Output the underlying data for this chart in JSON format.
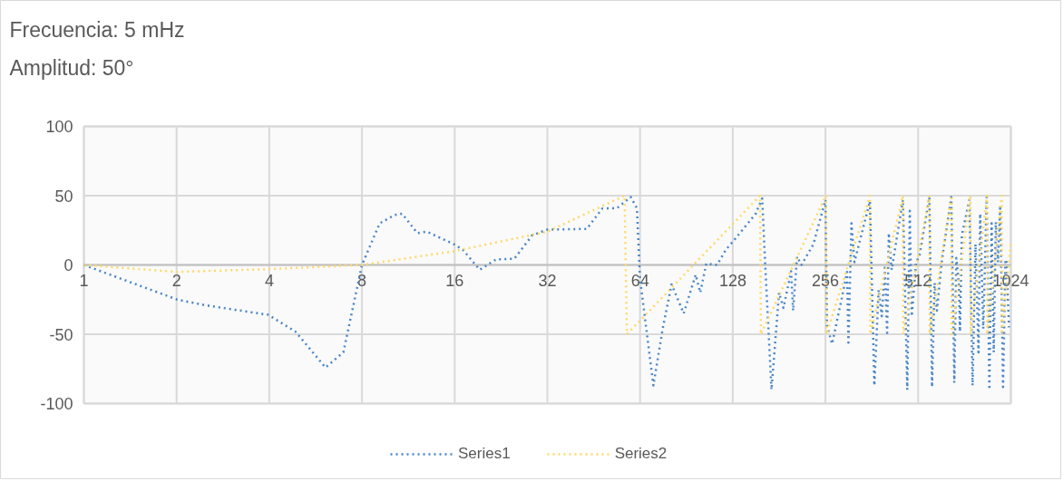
{
  "chart_data": {
    "type": "line",
    "title": "Frecuencia: 5 mHz",
    "subtitle": "Amplitud: 50°",
    "log": "x",
    "xlim": [
      1,
      1024
    ],
    "xticks": [
      1,
      2,
      4,
      8,
      16,
      32,
      64,
      128,
      256,
      512,
      1024
    ],
    "ylim": [
      -100,
      100
    ],
    "yticks": [
      -100,
      -50,
      0,
      50,
      100
    ],
    "grid": true,
    "legend": "bottom",
    "line_style": "dotted",
    "marker": "none",
    "series": [
      {
        "name": "Series1",
        "color": "#4a86c8",
        "x": [
          1,
          2.01,
          2.47,
          3.97,
          4.86,
          6.09,
          6.96,
          8,
          9.13,
          10.2,
          10.8,
          12.1,
          13,
          15.9,
          17,
          19.3,
          21.8,
          25,
          28.6,
          32,
          43,
          48.2,
          53.9,
          59.7,
          62.5,
          64,
          70.7,
          75.8,
          81,
          88.7,
          97,
          100.4,
          105,
          113.8,
          121.6,
          130.5,
          152,
          159.5,
          163,
          171,
          181,
          187,
          198,
          201,
          207,
          214,
          234,
          256,
          259,
          269,
          288,
          301,
          304,
          311,
          318,
          329,
          357,
          369,
          381,
          390,
          399,
          406,
          411,
          420,
          457,
          472,
          481,
          488,
          504,
          517,
          557,
          568,
          579,
          589,
          612,
          656,
          671,
          681,
          694,
          700,
          710,
          751,
          769,
          786,
          804,
          814,
          833,
          855,
          872,
          887,
          901,
          915,
          930,
          946,
          966,
          983,
          990,
          1010
        ],
        "values": [
          0,
          -25,
          -29,
          -36,
          -48,
          -74,
          -63,
          0,
          30,
          36,
          37,
          23,
          24,
          15,
          11,
          -3.5,
          4,
          4.5,
          21.5,
          25.5,
          26,
          40.7,
          41,
          49,
          41,
          -10,
          -87,
          -46,
          -14,
          -35,
          -7,
          -20,
          1,
          0,
          11,
          19,
          37,
          48,
          2,
          -90,
          -20,
          -31,
          -4.6,
          -33,
          6,
          0,
          15,
          47,
          -44,
          -57,
          -26,
          -5,
          -56,
          30,
          2,
          15,
          46,
          -87,
          -18,
          -37,
          -2,
          -49,
          23,
          -3.5,
          47,
          -90,
          39,
          -37,
          2,
          6.5,
          49,
          -88,
          -13,
          -33,
          4,
          49,
          -85,
          5,
          -13,
          -48,
          21.5,
          47,
          -87,
          15,
          -63,
          37,
          -46,
          49,
          -90,
          30,
          -63,
          31,
          2,
          43,
          -88,
          2,
          4,
          -45
        ]
      },
      {
        "name": "Series2",
        "color": "#ffd966",
        "x": [
          1,
          2,
          4,
          8,
          16,
          32,
          57,
          58,
          157,
          158,
          257,
          258,
          357,
          358,
          457,
          458,
          557,
          558,
          657,
          658,
          757,
          758,
          857,
          858,
          957,
          958,
          1024
        ],
        "values": [
          0,
          -5,
          -3,
          0,
          10,
          24,
          50,
          -50,
          50,
          -50,
          50,
          -50,
          50,
          -50,
          50,
          -50,
          50,
          -50,
          50,
          -50,
          50,
          -50,
          50,
          -50,
          50,
          -50,
          16
        ]
      }
    ]
  }
}
